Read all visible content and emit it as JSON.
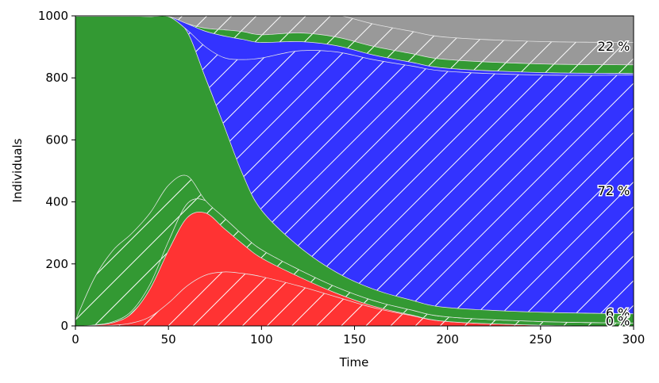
{
  "chart_data": {
    "type": "area",
    "stacked": true,
    "xlabel": "Time",
    "ylabel": "Individuals",
    "xlim": [
      0,
      300
    ],
    "ylim": [
      0,
      1000
    ],
    "xticks": [
      0,
      50,
      100,
      150,
      200,
      250,
      300
    ],
    "yticks": [
      0,
      200,
      400,
      600,
      800,
      1000
    ],
    "grid": false,
    "legend": "none",
    "x": [
      0,
      10,
      20,
      30,
      40,
      50,
      60,
      70,
      80,
      90,
      100,
      120,
      140,
      160,
      180,
      200,
      250,
      300
    ],
    "series": [
      {
        "color": "#ffffff",
        "hatched": false,
        "values": [
          0,
          0,
          0,
          0,
          0,
          0,
          0,
          0,
          0,
          0,
          0,
          0,
          0,
          0,
          0,
          0,
          0,
          0
        ]
      },
      {
        "color": "#ff3333",
        "hatched": true,
        "values": [
          0,
          1,
          3,
          10,
          30,
          75,
          130,
          165,
          175,
          170,
          160,
          130,
          95,
          60,
          35,
          15,
          3,
          0
        ]
      },
      {
        "color": "#ff3333",
        "hatched": false,
        "values": [
          0,
          2,
          8,
          30,
          90,
          170,
          220,
          200,
          140,
          95,
          60,
          30,
          12,
          5,
          2,
          0,
          0,
          0
        ]
      },
      {
        "color": "#339933",
        "hatched": true,
        "values": [
          0,
          1,
          3,
          8,
          15,
          30,
          45,
          40,
          35,
          30,
          27,
          23,
          20,
          18,
          16,
          15,
          12,
          10
        ]
      },
      {
        "color": "#339933",
        "hatched": true,
        "values": [
          20,
          150,
          230,
          250,
          230,
          180,
          90,
          0,
          0,
          0,
          0,
          0,
          0,
          0,
          0,
          0,
          0,
          0
        ]
      },
      {
        "color": "#339933",
        "hatched": false,
        "values": [
          980,
          846,
          756,
          702,
          634,
          544,
          466,
          396,
          296,
          195,
          128,
          75,
          48,
          37,
          32,
          30,
          30,
          30
        ]
      },
      {
        "color": "#3333ff",
        "hatched": true,
        "values": [
          0,
          0,
          0,
          0,
          0,
          0,
          5,
          100,
          220,
          370,
          490,
          630,
          710,
          740,
          755,
          762,
          765,
          770
        ]
      },
      {
        "color": "#3333ff",
        "hatched": false,
        "values": [
          0,
          0,
          0,
          0,
          0,
          0,
          20,
          50,
          70,
          65,
          50,
          30,
          20,
          15,
          12,
          10,
          8,
          5
        ]
      },
      {
        "color": "#339933",
        "hatched": true,
        "values": [
          0,
          0,
          0,
          0,
          0,
          0,
          0,
          10,
          20,
          25,
          25,
          28,
          28,
          28,
          28,
          28,
          28,
          28
        ]
      },
      {
        "color": "#999999",
        "hatched": true,
        "values": [
          0,
          0,
          0,
          0,
          10,
          20,
          30,
          45,
          50,
          60,
          65,
          70,
          72,
          72,
          72,
          72,
          72,
          72
        ]
      },
      {
        "color": "#999999",
        "hatched": false,
        "values": [
          0,
          3,
          3,
          3,
          1,
          6,
          9,
          18,
          34,
          60,
          55,
          54,
          60,
          70,
          80,
          88,
          112,
          125
        ]
      }
    ],
    "annotations": [
      {
        "text": "22 %",
        "x": 298,
        "y": 900
      },
      {
        "text": "72 %",
        "x": 298,
        "y": 435
      },
      {
        "text": "6 %",
        "x": 298,
        "y": 40
      },
      {
        "text": "0 %",
        "x": 298,
        "y": 14
      }
    ]
  }
}
